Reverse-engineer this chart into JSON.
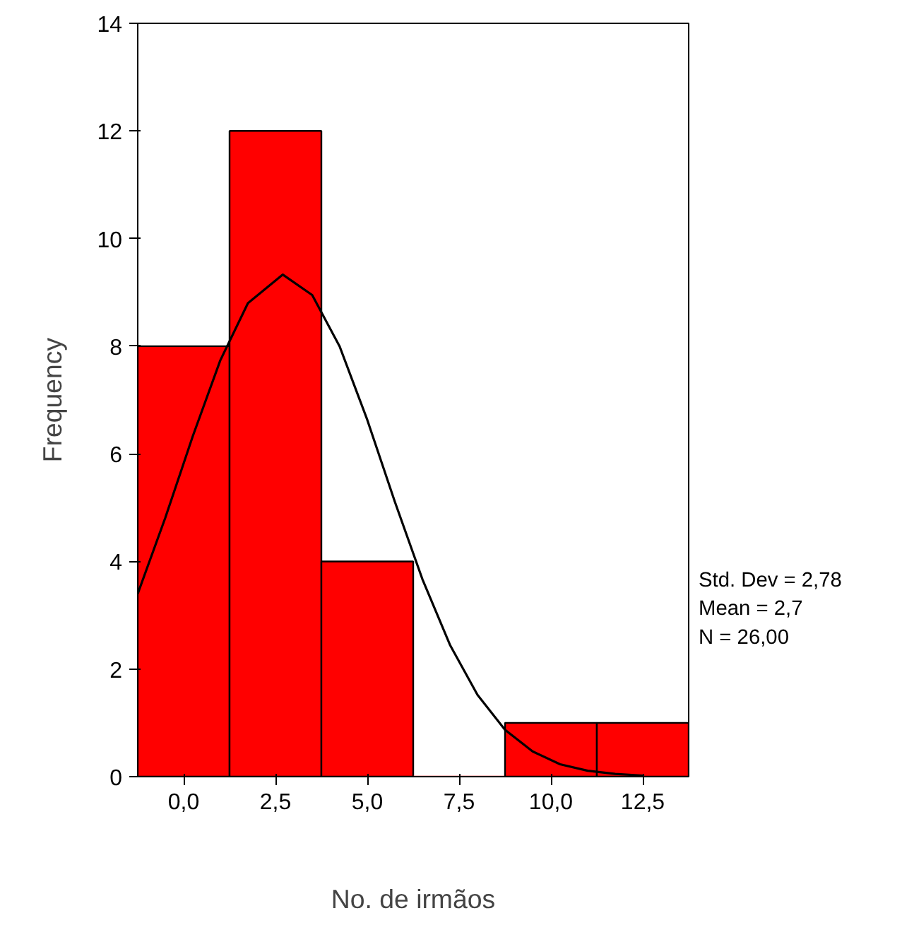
{
  "chart_data": {
    "type": "histogram",
    "xlabel": "No. de irmãos",
    "ylabel": "Frequency",
    "bins": [
      -1.25,
      1.25,
      3.75,
      6.25,
      8.75,
      11.25,
      13.75
    ],
    "values": [
      8,
      12,
      4,
      0,
      1,
      1
    ],
    "color": "#ff0000",
    "series": [
      {
        "type": "line",
        "color": "#000000",
        "x": [
          -1.25,
          -0.5,
          0.25,
          1,
          1.75,
          2.7,
          3.5,
          4.25,
          5,
          5.75,
          6.5,
          7.25,
          8,
          8.75,
          9.5,
          10.25,
          11,
          11.75,
          12.5
        ],
        "values": [
          3.4,
          4.81,
          6.33,
          7.74,
          8.8,
          9.33,
          8.95,
          7.99,
          6.63,
          5.11,
          3.67,
          2.45,
          1.52,
          0.87,
          0.47,
          0.23,
          0.11,
          0.05,
          0.02
        ]
      }
    ],
    "xlim": [
      -1.25,
      13.75
    ],
    "ylim": [
      0,
      14
    ],
    "xticks": [
      {
        "value": 0,
        "label": "0,0"
      },
      {
        "value": 2.5,
        "label": "2,5"
      },
      {
        "value": 5,
        "label": "5,0"
      },
      {
        "value": 7.5,
        "label": "7,5"
      },
      {
        "value": 10,
        "label": "10,0"
      },
      {
        "value": 12.5,
        "label": "12,5"
      }
    ],
    "yticks": [
      0,
      2,
      4,
      6,
      8,
      10,
      12,
      14
    ],
    "grid": false,
    "annotations": [
      "Std. Dev = 2,78",
      "Mean = 2,7",
      "N = 26,00"
    ]
  }
}
